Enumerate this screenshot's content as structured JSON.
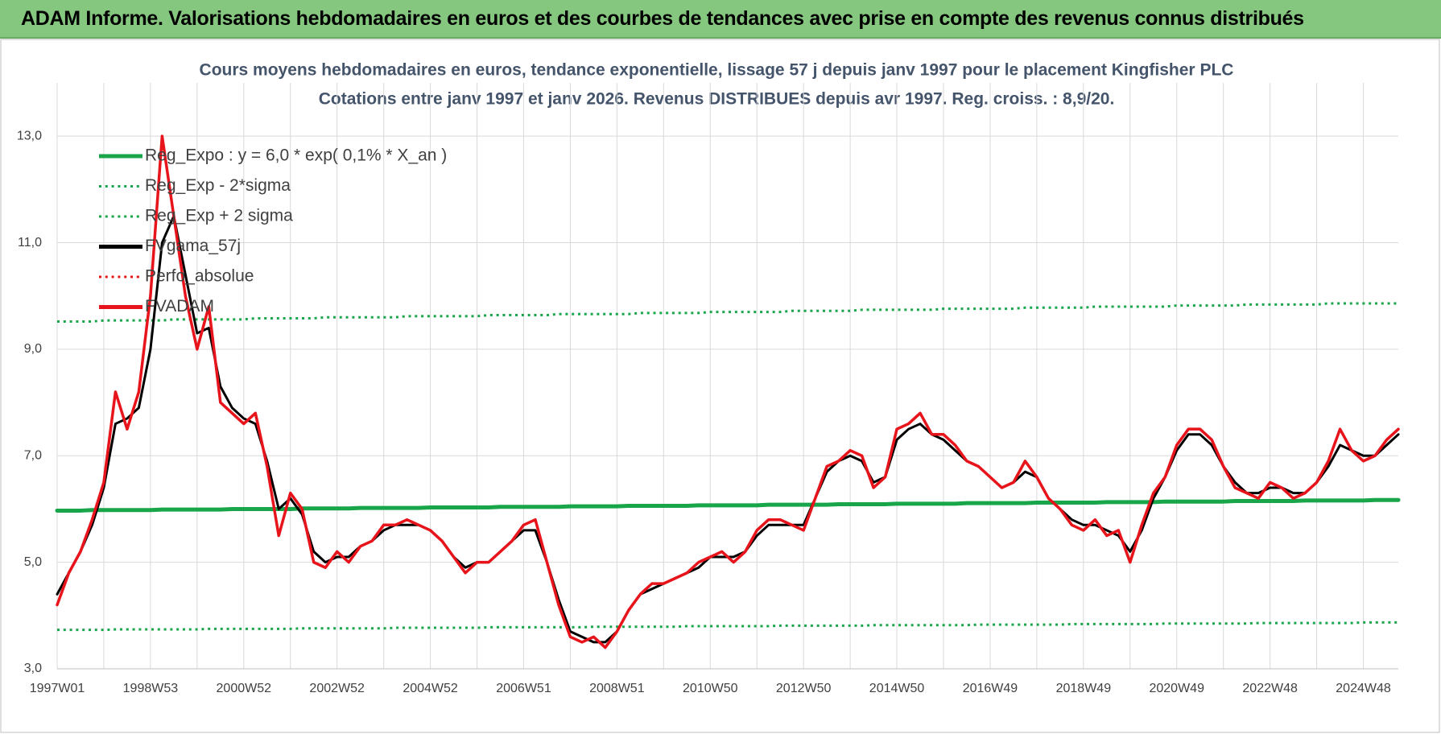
{
  "header": {
    "title": "ADAM Informe. Valorisations hebdomadaires en euros et des courbes de tendances avec prise en compte des revenus connus distribués"
  },
  "chart_data": {
    "type": "line",
    "title": "Cours moyens hebdomadaires en euros, tendance exponentielle, lissage 57 j depuis janv 1997  pour le placement Kingfisher PLC",
    "subtitle": "Cotations entre janv 1997 et janv 2026. Revenus DISTRIBUES depuis avr 1997. Reg. croiss. : 8,9/20.",
    "categories": [
      "1997W01",
      null,
      null,
      null,
      null,
      null,
      null,
      null,
      "1998W53",
      null,
      null,
      null,
      null,
      null,
      null,
      null,
      "2000W52",
      null,
      null,
      null,
      null,
      null,
      null,
      null,
      "2002W52",
      null,
      null,
      null,
      null,
      null,
      null,
      null,
      "2004W52",
      null,
      null,
      null,
      null,
      null,
      null,
      null,
      "2006W51",
      null,
      null,
      null,
      null,
      null,
      null,
      null,
      "2008W51",
      null,
      null,
      null,
      null,
      null,
      null,
      null,
      "2010W50",
      null,
      null,
      null,
      null,
      null,
      null,
      null,
      "2012W50",
      null,
      null,
      null,
      null,
      null,
      null,
      null,
      "2014W50",
      null,
      null,
      null,
      null,
      null,
      null,
      null,
      "2016W49",
      null,
      null,
      null,
      null,
      null,
      null,
      null,
      "2018W49",
      null,
      null,
      null,
      null,
      null,
      null,
      null,
      "2020W49",
      null,
      null,
      null,
      null,
      null,
      null,
      null,
      "2022W48",
      null,
      null,
      null,
      null,
      null,
      null,
      null,
      "2024W48",
      null,
      null,
      null
    ],
    "ylim": [
      3,
      14
    ],
    "yticks": [
      {
        "value": 3,
        "label": "3,0"
      },
      {
        "value": 5,
        "label": "5,0"
      },
      {
        "value": 7,
        "label": "7,0"
      },
      {
        "value": 9,
        "label": "9,0"
      },
      {
        "value": 11,
        "label": "11,0"
      },
      {
        "value": 13,
        "label": "13,0"
      }
    ],
    "grid": true,
    "legend": "upper left",
    "series": [
      {
        "name": "Reg_Expo : y = 6,0 * exp( 0,1% *  X_an )",
        "color": "#19a64a",
        "style": "solid",
        "width": 5,
        "values": [
          5.97,
          5.97,
          5.97,
          5.98,
          5.98,
          5.98,
          5.98,
          5.98,
          5.98,
          5.99,
          5.99,
          5.99,
          5.99,
          5.99,
          5.99,
          6.0,
          6.0,
          6.0,
          6.0,
          6.0,
          6.0,
          6.01,
          6.01,
          6.01,
          6.01,
          6.01,
          6.02,
          6.02,
          6.02,
          6.02,
          6.02,
          6.02,
          6.03,
          6.03,
          6.03,
          6.03,
          6.03,
          6.03,
          6.04,
          6.04,
          6.04,
          6.04,
          6.04,
          6.04,
          6.05,
          6.05,
          6.05,
          6.05,
          6.05,
          6.06,
          6.06,
          6.06,
          6.06,
          6.06,
          6.06,
          6.07,
          6.07,
          6.07,
          6.07,
          6.07,
          6.07,
          6.08,
          6.08,
          6.08,
          6.08,
          6.08,
          6.08,
          6.09,
          6.09,
          6.09,
          6.09,
          6.09,
          6.1,
          6.1,
          6.1,
          6.1,
          6.1,
          6.1,
          6.11,
          6.11,
          6.11,
          6.11,
          6.11,
          6.11,
          6.12,
          6.12,
          6.12,
          6.12,
          6.12,
          6.12,
          6.13,
          6.13,
          6.13,
          6.13,
          6.13,
          6.14,
          6.14,
          6.14,
          6.14,
          6.14,
          6.14,
          6.15,
          6.15,
          6.15,
          6.15,
          6.15,
          6.15,
          6.16,
          6.16,
          6.16,
          6.16,
          6.16,
          6.16,
          6.17,
          6.17,
          6.17
        ]
      },
      {
        "name": "Reg_Exp - 2*sigma",
        "color": "#19a64a",
        "style": "dotted",
        "width": 3,
        "values": [
          3.73,
          3.73,
          3.73,
          3.73,
          3.73,
          3.74,
          3.74,
          3.74,
          3.74,
          3.74,
          3.74,
          3.74,
          3.74,
          3.75,
          3.75,
          3.75,
          3.75,
          3.75,
          3.75,
          3.75,
          3.75,
          3.76,
          3.76,
          3.76,
          3.76,
          3.76,
          3.76,
          3.76,
          3.76,
          3.77,
          3.77,
          3.77,
          3.77,
          3.77,
          3.77,
          3.77,
          3.77,
          3.78,
          3.78,
          3.78,
          3.78,
          3.78,
          3.78,
          3.78,
          3.78,
          3.78,
          3.79,
          3.79,
          3.79,
          3.79,
          3.79,
          3.79,
          3.79,
          3.79,
          3.8,
          3.8,
          3.8,
          3.8,
          3.8,
          3.8,
          3.8,
          3.8,
          3.81,
          3.81,
          3.81,
          3.81,
          3.81,
          3.81,
          3.81,
          3.81,
          3.82,
          3.82,
          3.82,
          3.82,
          3.82,
          3.82,
          3.82,
          3.82,
          3.82,
          3.83,
          3.83,
          3.83,
          3.83,
          3.83,
          3.83,
          3.83,
          3.83,
          3.84,
          3.84,
          3.84,
          3.84,
          3.84,
          3.84,
          3.84,
          3.84,
          3.85,
          3.85,
          3.85,
          3.85,
          3.85,
          3.85,
          3.85,
          3.85,
          3.86,
          3.86,
          3.86,
          3.86,
          3.86,
          3.86,
          3.86,
          3.86,
          3.86,
          3.87,
          3.87,
          3.87,
          3.87
        ]
      },
      {
        "name": "Reg_Exp + 2 sigma",
        "color": "#19a64a",
        "style": "dotted",
        "width": 3,
        "values": [
          9.52,
          9.52,
          9.52,
          9.52,
          9.54,
          9.54,
          9.54,
          9.54,
          9.54,
          9.54,
          9.56,
          9.56,
          9.56,
          9.56,
          9.56,
          9.56,
          9.56,
          9.58,
          9.58,
          9.58,
          9.58,
          9.58,
          9.58,
          9.6,
          9.6,
          9.6,
          9.6,
          9.6,
          9.6,
          9.6,
          9.62,
          9.62,
          9.62,
          9.62,
          9.62,
          9.62,
          9.62,
          9.64,
          9.64,
          9.64,
          9.64,
          9.64,
          9.64,
          9.66,
          9.66,
          9.66,
          9.66,
          9.66,
          9.66,
          9.66,
          9.68,
          9.68,
          9.68,
          9.68,
          9.68,
          9.68,
          9.7,
          9.7,
          9.7,
          9.7,
          9.7,
          9.7,
          9.7,
          9.72,
          9.72,
          9.72,
          9.72,
          9.72,
          9.72,
          9.74,
          9.74,
          9.74,
          9.74,
          9.74,
          9.74,
          9.74,
          9.76,
          9.76,
          9.76,
          9.76,
          9.76,
          9.76,
          9.76,
          9.78,
          9.78,
          9.78,
          9.78,
          9.78,
          9.78,
          9.8,
          9.8,
          9.8,
          9.8,
          9.8,
          9.8,
          9.8,
          9.82,
          9.82,
          9.82,
          9.82,
          9.82,
          9.82,
          9.84,
          9.84,
          9.84,
          9.84,
          9.84,
          9.84,
          9.84,
          9.86,
          9.86,
          9.86,
          9.86,
          9.86,
          9.86,
          9.86
        ]
      },
      {
        "name": "FVgama_57j",
        "color": "#000000",
        "style": "solid",
        "width": 3,
        "values": [
          4.4,
          4.8,
          5.2,
          5.7,
          6.4,
          7.6,
          7.7,
          7.9,
          9.0,
          11.0,
          11.5,
          10.4,
          9.3,
          9.4,
          8.3,
          7.9,
          7.7,
          7.6,
          6.9,
          6.0,
          6.2,
          5.9,
          5.2,
          5.0,
          5.1,
          5.1,
          5.3,
          5.4,
          5.6,
          5.7,
          5.7,
          5.7,
          5.6,
          5.4,
          5.1,
          4.9,
          5.0,
          5.0,
          5.2,
          5.4,
          5.6,
          5.6,
          5.0,
          4.3,
          3.7,
          3.6,
          3.5,
          3.5,
          3.7,
          4.1,
          4.4,
          4.5,
          4.6,
          4.7,
          4.8,
          4.9,
          5.1,
          5.1,
          5.1,
          5.2,
          5.5,
          5.7,
          5.7,
          5.7,
          5.7,
          6.2,
          6.7,
          6.9,
          7.0,
          6.9,
          6.5,
          6.6,
          7.3,
          7.5,
          7.6,
          7.4,
          7.3,
          7.1,
          6.9,
          6.8,
          6.6,
          6.4,
          6.5,
          6.7,
          6.6,
          6.2,
          6.0,
          5.8,
          5.7,
          5.7,
          5.6,
          5.5,
          5.2,
          5.6,
          6.2,
          6.6,
          7.1,
          7.4,
          7.4,
          7.2,
          6.8,
          6.5,
          6.3,
          6.3,
          6.4,
          6.4,
          6.3,
          6.3,
          6.5,
          6.8,
          7.2,
          7.1,
          7.0,
          7.0,
          7.2,
          7.4
        ]
      },
      {
        "name": "Perfo_absolue",
        "color": "#e8141b",
        "style": "dotted",
        "width": 3,
        "values": [
          null,
          null,
          null,
          null,
          null,
          null,
          null,
          null,
          null,
          null,
          null,
          null,
          null,
          null,
          null,
          null,
          null,
          null,
          null,
          null,
          null,
          null,
          null,
          null,
          null,
          null,
          null,
          null,
          null,
          null,
          null,
          null,
          null,
          null,
          null,
          null,
          null,
          null,
          null,
          null,
          null,
          null,
          null,
          null,
          null,
          null,
          null,
          null,
          null,
          null,
          null,
          null,
          null,
          null,
          null,
          null,
          null,
          null,
          null,
          null,
          null,
          null,
          null,
          null,
          null,
          null,
          null,
          null,
          null,
          null,
          null,
          null,
          null,
          null,
          null,
          null,
          null,
          null,
          null,
          null,
          null,
          null,
          null,
          null,
          null,
          null,
          null,
          null,
          null,
          null,
          null,
          null,
          null,
          null,
          null,
          null,
          null,
          null,
          null,
          null,
          null,
          null,
          null,
          null,
          null,
          null,
          null,
          null,
          null,
          null,
          null,
          null,
          null,
          null,
          null,
          null
        ]
      },
      {
        "name": "FVADAM",
        "color": "#e8141b",
        "style": "solid",
        "width": 3.5,
        "values": [
          4.2,
          4.8,
          5.2,
          5.8,
          6.5,
          8.2,
          7.5,
          8.2,
          10.0,
          13.0,
          11.5,
          10.0,
          9.0,
          9.8,
          8.0,
          7.8,
          7.6,
          7.8,
          6.8,
          5.5,
          6.3,
          6.0,
          5.0,
          4.9,
          5.2,
          5.0,
          5.3,
          5.4,
          5.7,
          5.7,
          5.8,
          5.7,
          5.6,
          5.4,
          5.1,
          4.8,
          5.0,
          5.0,
          5.2,
          5.4,
          5.7,
          5.8,
          5.0,
          4.2,
          3.6,
          3.5,
          3.6,
          3.4,
          3.7,
          4.1,
          4.4,
          4.6,
          4.6,
          4.7,
          4.8,
          5.0,
          5.1,
          5.2,
          5.0,
          5.2,
          5.6,
          5.8,
          5.8,
          5.7,
          5.6,
          6.2,
          6.8,
          6.9,
          7.1,
          7.0,
          6.4,
          6.6,
          7.5,
          7.6,
          7.8,
          7.4,
          7.4,
          7.2,
          6.9,
          6.8,
          6.6,
          6.4,
          6.5,
          6.9,
          6.6,
          6.2,
          6.0,
          5.7,
          5.6,
          5.8,
          5.5,
          5.6,
          5.0,
          5.7,
          6.3,
          6.6,
          7.2,
          7.5,
          7.5,
          7.3,
          6.8,
          6.4,
          6.3,
          6.2,
          6.5,
          6.4,
          6.2,
          6.3,
          6.5,
          6.9,
          7.5,
          7.1,
          6.9,
          7.0,
          7.3,
          7.5
        ]
      }
    ]
  }
}
